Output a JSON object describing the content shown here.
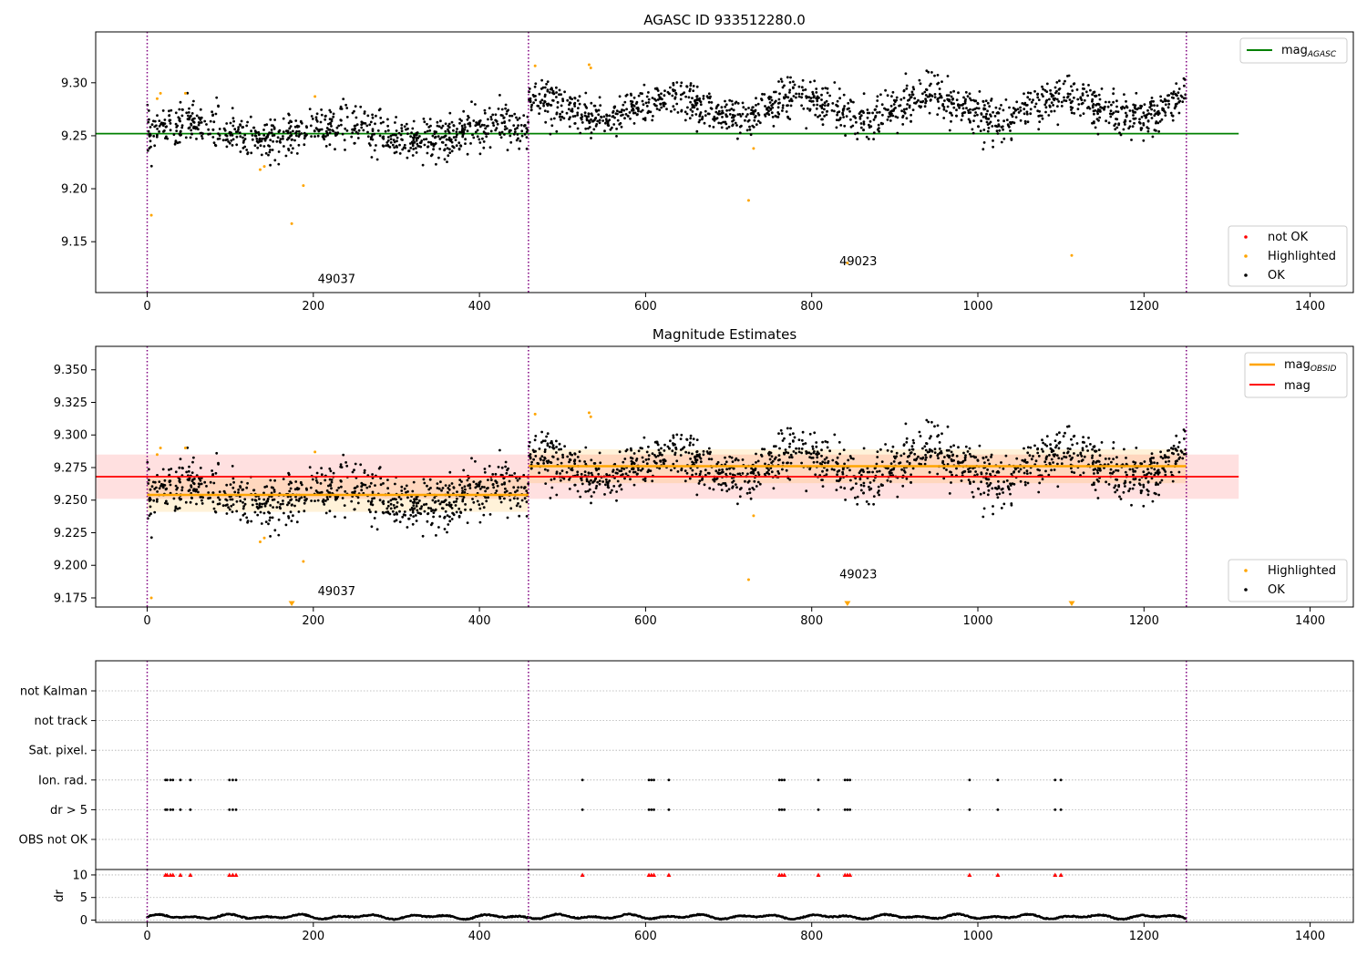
{
  "figure": {
    "title": "AGASC ID 933512280.0",
    "background": "#ffffff",
    "obs_boundaries": [
      0,
      459,
      1251
    ],
    "boundary_color": "#800080"
  },
  "colors": {
    "ok": "#000000",
    "highlighted": "#ffa500",
    "not_ok": "#ff0000",
    "agasc_line": "#008000",
    "obsid_line": "#ffa500",
    "mag_line": "#ff0000"
  },
  "chart_data": [
    {
      "type": "scatter",
      "title": "",
      "xlim": [
        -62,
        1452
      ],
      "ylim": [
        9.102,
        9.348
      ],
      "yticks": [
        9.15,
        9.2,
        9.25,
        9.3
      ],
      "ytick_labels": [
        "9.15",
        "9.20",
        "9.25",
        "9.30"
      ],
      "xticks": [
        0,
        200,
        400,
        600,
        800,
        1000,
        1200,
        1400
      ],
      "xtick_labels": [
        "0",
        "200",
        "400",
        "600",
        "800",
        "1000",
        "1200",
        "1400"
      ],
      "agasc_mag": 9.252,
      "agasc_xrange": [
        -62,
        1314
      ],
      "obs_labels": [
        {
          "text": "49037",
          "x": 228,
          "y": 9.111
        },
        {
          "text": "49023",
          "x": 856,
          "y": 9.128
        }
      ],
      "segments": [
        {
          "x_start": 0,
          "x_end": 459,
          "mean": 9.253,
          "std": 0.013,
          "noise": 0.0095,
          "wave_amp": 0.008,
          "wave_period": 190
        },
        {
          "x_start": 459,
          "x_end": 1251,
          "mean": 9.276,
          "std": 0.013,
          "noise": 0.0095,
          "wave_amp": 0.01,
          "wave_period": 160
        }
      ],
      "highlighted_points": [
        {
          "x": 5,
          "y": 9.175
        },
        {
          "x": 12,
          "y": 9.285
        },
        {
          "x": 16,
          "y": 9.29
        },
        {
          "x": 46,
          "y": 9.29
        },
        {
          "x": 136,
          "y": 9.218
        },
        {
          "x": 141,
          "y": 9.221
        },
        {
          "x": 174,
          "y": 9.167
        },
        {
          "x": 188,
          "y": 9.203
        },
        {
          "x": 202,
          "y": 9.287
        },
        {
          "x": 467,
          "y": 9.316
        },
        {
          "x": 532,
          "y": 9.317
        },
        {
          "x": 534,
          "y": 9.314
        },
        {
          "x": 724,
          "y": 9.189
        },
        {
          "x": 730,
          "y": 9.238
        },
        {
          "x": 843,
          "y": 9.13
        },
        {
          "x": 1113,
          "y": 9.137
        }
      ],
      "legend_top": [
        {
          "label": "mag",
          "sub": "AGASC",
          "color": "#008000"
        }
      ],
      "legend_bottom": [
        {
          "label": "not OK",
          "color": "#ff0000"
        },
        {
          "label": "Highlighted",
          "color": "#ffa500"
        },
        {
          "label": "OK",
          "color": "#000000"
        }
      ]
    },
    {
      "type": "scatter",
      "title": "Magnitude Estimates",
      "xlim": [
        -62,
        1452
      ],
      "ylim": [
        9.168,
        9.368
      ],
      "yticks": [
        9.175,
        9.2,
        9.225,
        9.25,
        9.275,
        9.3,
        9.325,
        9.35
      ],
      "ytick_labels": [
        "9.175",
        "9.200",
        "9.225",
        "9.250",
        "9.275",
        "9.300",
        "9.325",
        "9.350"
      ],
      "xticks": [
        0,
        200,
        400,
        600,
        800,
        1000,
        1200,
        1400
      ],
      "xtick_labels": [
        "0",
        "200",
        "400",
        "600",
        "800",
        "1000",
        "1200",
        "1400"
      ],
      "mag": 9.268,
      "mag_std": 0.017,
      "mag_xrange": [
        -62,
        1314
      ],
      "obsid_means": [
        {
          "x_start": 0,
          "x_end": 459,
          "mean": 9.254,
          "std": 0.013
        },
        {
          "x_start": 459,
          "x_end": 1251,
          "mean": 9.276,
          "std": 0.013
        }
      ],
      "obs_labels": [
        {
          "text": "49037",
          "x": 228,
          "y": 9.177
        },
        {
          "text": "49023",
          "x": 856,
          "y": 9.19
        }
      ],
      "highlighted_points": [
        {
          "x": 5,
          "y": 9.175
        },
        {
          "x": 12,
          "y": 9.285
        },
        {
          "x": 16,
          "y": 9.29
        },
        {
          "x": 46,
          "y": 9.29
        },
        {
          "x": 136,
          "y": 9.218
        },
        {
          "x": 141,
          "y": 9.221
        },
        {
          "x": 188,
          "y": 9.203
        },
        {
          "x": 202,
          "y": 9.287
        },
        {
          "x": 467,
          "y": 9.316
        },
        {
          "x": 532,
          "y": 9.317
        },
        {
          "x": 534,
          "y": 9.314
        },
        {
          "x": 724,
          "y": 9.189
        },
        {
          "x": 730,
          "y": 9.238
        }
      ],
      "off_axis_points": [
        {
          "x": 174
        },
        {
          "x": 843
        },
        {
          "x": 1113
        }
      ],
      "legend_top": [
        {
          "label": "mag",
          "sub": "OBSID",
          "color": "#ffa500"
        },
        {
          "label": "mag",
          "sub": "",
          "color": "#ff0000"
        }
      ],
      "legend_bottom": [
        {
          "label": "Highlighted",
          "color": "#ffa500"
        },
        {
          "label": "OK",
          "color": "#000000"
        }
      ]
    },
    {
      "type": "scatter",
      "title": "",
      "xlim": [
        -62,
        1452
      ],
      "categories": [
        "not Kalman",
        "not track",
        "Sat. pixel.",
        "Ion. rad.",
        "dr > 5",
        "OBS not OK"
      ],
      "flag_x": [
        22,
        24,
        28,
        31,
        40,
        52,
        99,
        103,
        107,
        524,
        604,
        607,
        610,
        628,
        761,
        764,
        767,
        808,
        840,
        843,
        846,
        990,
        1024,
        1093,
        1100
      ],
      "flag_rows": [
        "Ion. rad.",
        "dr > 5"
      ]
    },
    {
      "type": "scatter",
      "title": "",
      "xlim": [
        -62,
        1452
      ],
      "ylim": [
        -0.5,
        11.2
      ],
      "ylabel": "dr",
      "yticks": [
        0,
        5,
        10
      ],
      "ytick_labels": [
        "0",
        "5",
        "10"
      ],
      "xticks": [
        0,
        200,
        400,
        600,
        800,
        1000,
        1200,
        1400
      ],
      "xtick_labels": [
        "0",
        "200",
        "400",
        "600",
        "800",
        "1000",
        "1200",
        "1400"
      ],
      "dr_mean": 0.75,
      "dr_amp": 0.55,
      "dr_clip": 10,
      "clipped_x": [
        22,
        24,
        28,
        31,
        40,
        52,
        99,
        103,
        107,
        524,
        604,
        607,
        610,
        628,
        761,
        764,
        767,
        808,
        840,
        843,
        846,
        990,
        1024,
        1093,
        1100
      ]
    }
  ]
}
